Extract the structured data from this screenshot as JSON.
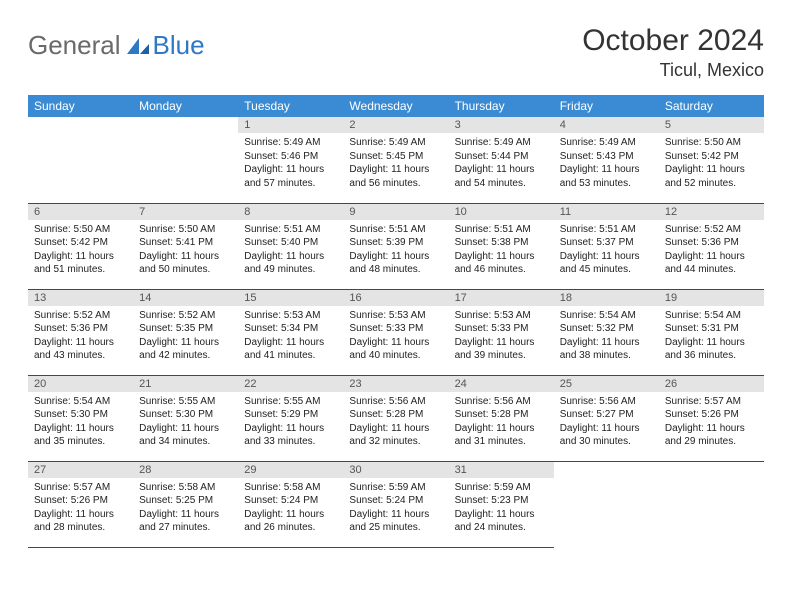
{
  "brand": {
    "part1": "General",
    "part2": "Blue"
  },
  "title": {
    "monthyear": "October 2024",
    "location": "Ticul, Mexico"
  },
  "colors": {
    "header_bg": "#3b8bd4",
    "header_text": "#ffffff",
    "daynum_bg": "#e4e4e4",
    "row_border": "#234d7a",
    "logo_blue": "#2f78c4"
  },
  "weekdays": [
    "Sunday",
    "Monday",
    "Tuesday",
    "Wednesday",
    "Thursday",
    "Friday",
    "Saturday"
  ],
  "weeks": [
    [
      null,
      null,
      {
        "n": "1",
        "sr": "5:49 AM",
        "ss": "5:46 PM",
        "dh": "11",
        "dm": "57"
      },
      {
        "n": "2",
        "sr": "5:49 AM",
        "ss": "5:45 PM",
        "dh": "11",
        "dm": "56"
      },
      {
        "n": "3",
        "sr": "5:49 AM",
        "ss": "5:44 PM",
        "dh": "11",
        "dm": "54"
      },
      {
        "n": "4",
        "sr": "5:49 AM",
        "ss": "5:43 PM",
        "dh": "11",
        "dm": "53"
      },
      {
        "n": "5",
        "sr": "5:50 AM",
        "ss": "5:42 PM",
        "dh": "11",
        "dm": "52"
      }
    ],
    [
      {
        "n": "6",
        "sr": "5:50 AM",
        "ss": "5:42 PM",
        "dh": "11",
        "dm": "51"
      },
      {
        "n": "7",
        "sr": "5:50 AM",
        "ss": "5:41 PM",
        "dh": "11",
        "dm": "50"
      },
      {
        "n": "8",
        "sr": "5:51 AM",
        "ss": "5:40 PM",
        "dh": "11",
        "dm": "49"
      },
      {
        "n": "9",
        "sr": "5:51 AM",
        "ss": "5:39 PM",
        "dh": "11",
        "dm": "48"
      },
      {
        "n": "10",
        "sr": "5:51 AM",
        "ss": "5:38 PM",
        "dh": "11",
        "dm": "46"
      },
      {
        "n": "11",
        "sr": "5:51 AM",
        "ss": "5:37 PM",
        "dh": "11",
        "dm": "45"
      },
      {
        "n": "12",
        "sr": "5:52 AM",
        "ss": "5:36 PM",
        "dh": "11",
        "dm": "44"
      }
    ],
    [
      {
        "n": "13",
        "sr": "5:52 AM",
        "ss": "5:36 PM",
        "dh": "11",
        "dm": "43"
      },
      {
        "n": "14",
        "sr": "5:52 AM",
        "ss": "5:35 PM",
        "dh": "11",
        "dm": "42"
      },
      {
        "n": "15",
        "sr": "5:53 AM",
        "ss": "5:34 PM",
        "dh": "11",
        "dm": "41"
      },
      {
        "n": "16",
        "sr": "5:53 AM",
        "ss": "5:33 PM",
        "dh": "11",
        "dm": "40"
      },
      {
        "n": "17",
        "sr": "5:53 AM",
        "ss": "5:33 PM",
        "dh": "11",
        "dm": "39"
      },
      {
        "n": "18",
        "sr": "5:54 AM",
        "ss": "5:32 PM",
        "dh": "11",
        "dm": "38"
      },
      {
        "n": "19",
        "sr": "5:54 AM",
        "ss": "5:31 PM",
        "dh": "11",
        "dm": "36"
      }
    ],
    [
      {
        "n": "20",
        "sr": "5:54 AM",
        "ss": "5:30 PM",
        "dh": "11",
        "dm": "35"
      },
      {
        "n": "21",
        "sr": "5:55 AM",
        "ss": "5:30 PM",
        "dh": "11",
        "dm": "34"
      },
      {
        "n": "22",
        "sr": "5:55 AM",
        "ss": "5:29 PM",
        "dh": "11",
        "dm": "33"
      },
      {
        "n": "23",
        "sr": "5:56 AM",
        "ss": "5:28 PM",
        "dh": "11",
        "dm": "32"
      },
      {
        "n": "24",
        "sr": "5:56 AM",
        "ss": "5:28 PM",
        "dh": "11",
        "dm": "31"
      },
      {
        "n": "25",
        "sr": "5:56 AM",
        "ss": "5:27 PM",
        "dh": "11",
        "dm": "30"
      },
      {
        "n": "26",
        "sr": "5:57 AM",
        "ss": "5:26 PM",
        "dh": "11",
        "dm": "29"
      }
    ],
    [
      {
        "n": "27",
        "sr": "5:57 AM",
        "ss": "5:26 PM",
        "dh": "11",
        "dm": "28"
      },
      {
        "n": "28",
        "sr": "5:58 AM",
        "ss": "5:25 PM",
        "dh": "11",
        "dm": "27"
      },
      {
        "n": "29",
        "sr": "5:58 AM",
        "ss": "5:24 PM",
        "dh": "11",
        "dm": "26"
      },
      {
        "n": "30",
        "sr": "5:59 AM",
        "ss": "5:24 PM",
        "dh": "11",
        "dm": "25"
      },
      {
        "n": "31",
        "sr": "5:59 AM",
        "ss": "5:23 PM",
        "dh": "11",
        "dm": "24"
      },
      null,
      null
    ]
  ],
  "labels": {
    "sunrise": "Sunrise:",
    "sunset": "Sunset:",
    "daylight_a": "Daylight:",
    "hours_word": "hours",
    "and_word": "and",
    "minutes_word": "minutes."
  }
}
